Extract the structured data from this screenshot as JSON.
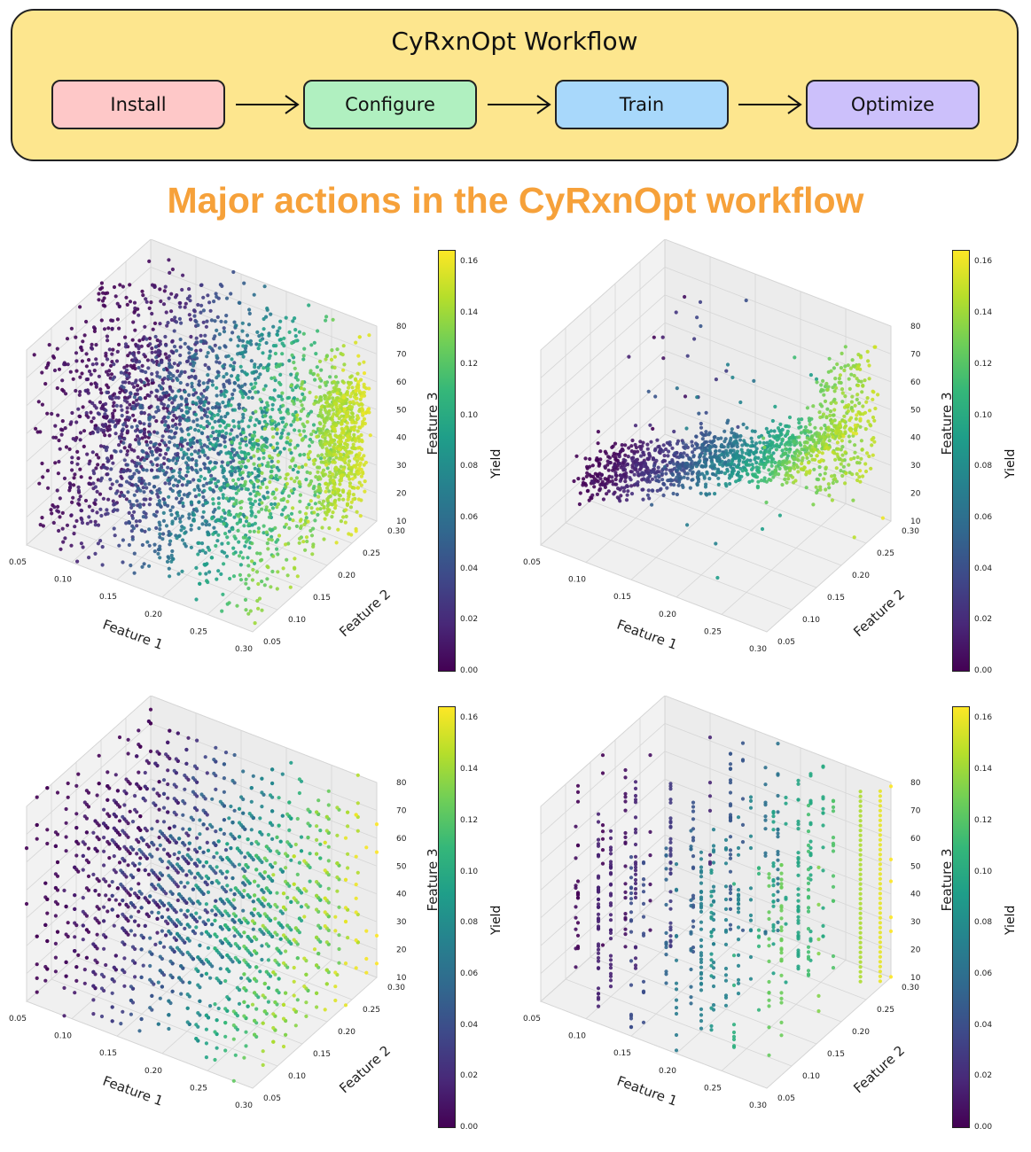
{
  "workflow": {
    "title": "CyRxnOpt Workflow",
    "steps": [
      {
        "label": "Install",
        "color": "#fec8c8"
      },
      {
        "label": "Configure",
        "color": "#b0f0c0"
      },
      {
        "label": "Train",
        "color": "#a8d8fb"
      },
      {
        "label": "Optimize",
        "color": "#ccc0fb"
      }
    ]
  },
  "main_title": "Major actions in the CyRxnOpt workflow",
  "colors": {
    "title": "#f6a13a",
    "workflow_bg": "#fde68e",
    "colormap": "viridis"
  },
  "chart_data": [
    {
      "type": "scatter",
      "projection": "3d",
      "distribution": "dense random cloud",
      "xlabel": "Feature 1",
      "ylabel": "Feature 2",
      "zlabel": "Feature 3",
      "xlim": [
        0.05,
        0.3
      ],
      "ylim": [
        0.05,
        0.3
      ],
      "zlim": [
        10,
        80
      ],
      "x_ticks": [
        "0.05",
        "0.10",
        "0.15",
        "0.20",
        "0.25",
        "0.30"
      ],
      "y_ticks": [
        "0.05",
        "0.10",
        "0.15",
        "0.20",
        "0.25",
        "0.30"
      ],
      "z_ticks": [
        "10",
        "20",
        "30",
        "40",
        "50",
        "60",
        "70",
        "80"
      ],
      "colorbar": {
        "label": "Yield",
        "range": [
          0.0,
          0.165
        ],
        "ticks": [
          "0.00",
          "0.02",
          "0.04",
          "0.06",
          "0.08",
          "0.10",
          "0.12",
          "0.14",
          "0.16"
        ]
      }
    },
    {
      "type": "scatter",
      "projection": "3d",
      "distribution": "sparse band converging to high Feature 1",
      "xlabel": "Feature 1",
      "ylabel": "Feature 2",
      "zlabel": "Feature 3",
      "xlim": [
        0.05,
        0.3
      ],
      "ylim": [
        0.05,
        0.3
      ],
      "zlim": [
        10,
        80
      ],
      "x_ticks": [
        "0.05",
        "0.10",
        "0.15",
        "0.20",
        "0.25",
        "0.30"
      ],
      "y_ticks": [
        "0.05",
        "0.10",
        "0.15",
        "0.20",
        "0.25",
        "0.30"
      ],
      "z_ticks": [
        "10",
        "20",
        "30",
        "40",
        "50",
        "60",
        "70",
        "80"
      ],
      "colorbar": {
        "label": "Yield",
        "range": [
          0.0,
          0.165
        ],
        "ticks": [
          "0.00",
          "0.02",
          "0.04",
          "0.06",
          "0.08",
          "0.10",
          "0.12",
          "0.14",
          "0.16"
        ]
      }
    },
    {
      "type": "scatter",
      "projection": "3d",
      "distribution": "grid-aligned columns",
      "xlabel": "Feature 1",
      "ylabel": "Feature 2",
      "zlabel": "Feature 3",
      "xlim": [
        0.05,
        0.3
      ],
      "ylim": [
        0.05,
        0.3
      ],
      "zlim": [
        10,
        80
      ],
      "x_ticks": [
        "0.05",
        "0.10",
        "0.15",
        "0.20",
        "0.25",
        "0.30"
      ],
      "y_ticks": [
        "0.05",
        "0.10",
        "0.15",
        "0.20",
        "0.25",
        "0.30"
      ],
      "z_ticks": [
        "10",
        "20",
        "30",
        "40",
        "50",
        "60",
        "70",
        "80"
      ],
      "colorbar": {
        "label": "Yield",
        "range": [
          0.0,
          0.165
        ],
        "ticks": [
          "0.00",
          "0.02",
          "0.04",
          "0.06",
          "0.08",
          "0.10",
          "0.12",
          "0.14",
          "0.16"
        ]
      }
    },
    {
      "type": "scatter",
      "projection": "3d",
      "distribution": "sparse vertical columns",
      "xlabel": "Feature 1",
      "ylabel": "Feature 2",
      "zlabel": "Feature 3",
      "xlim": [
        0.05,
        0.3
      ],
      "ylim": [
        0.05,
        0.3
      ],
      "zlim": [
        10,
        80
      ],
      "x_ticks": [
        "0.05",
        "0.10",
        "0.15",
        "0.20",
        "0.25",
        "0.30"
      ],
      "y_ticks": [
        "0.05",
        "0.10",
        "0.15",
        "0.20",
        "0.25",
        "0.30"
      ],
      "z_ticks": [
        "10",
        "20",
        "30",
        "40",
        "50",
        "60",
        "70",
        "80"
      ],
      "colorbar": {
        "label": "Yield",
        "range": [
          0.0,
          0.165
        ],
        "ticks": [
          "0.00",
          "0.02",
          "0.04",
          "0.06",
          "0.08",
          "0.10",
          "0.12",
          "0.14",
          "0.16"
        ]
      }
    }
  ]
}
